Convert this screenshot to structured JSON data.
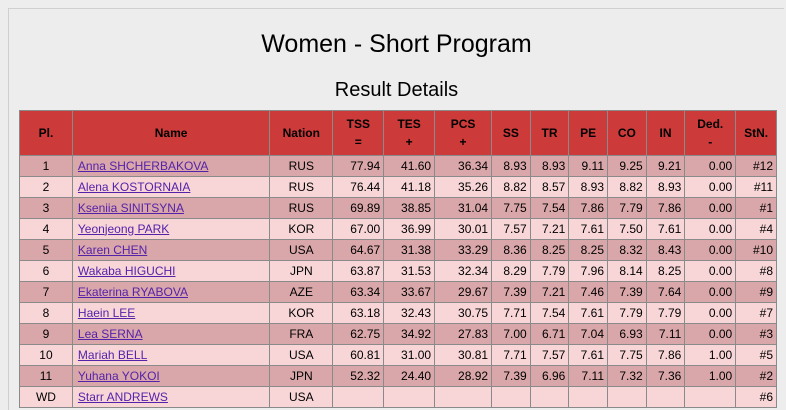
{
  "page": {
    "title": "Women - Short Program",
    "subtitle": "Result Details"
  },
  "table": {
    "headers": {
      "pl": "Pl.",
      "name": "Name",
      "nation": "Nation",
      "tss_top": "TSS",
      "tss_bottom": "=",
      "tes_top": "TES",
      "tes_bottom": "+",
      "pcs_top": "PCS",
      "pcs_bottom": "+",
      "ss": "SS",
      "tr": "TR",
      "pe": "PE",
      "co": "CO",
      "in": "IN",
      "ded_top": "Ded.",
      "ded_bottom": "-",
      "stn": "StN."
    },
    "rows": [
      {
        "pl": "1",
        "name": "Anna SHCHERBAKOVA",
        "nation": "RUS",
        "tss": "77.94",
        "tes": "41.60",
        "pcs": "36.34",
        "ss": "8.93",
        "tr": "8.93",
        "pe": "9.11",
        "co": "9.25",
        "in": "9.21",
        "ded": "0.00",
        "stn": "#12"
      },
      {
        "pl": "2",
        "name": "Alena KOSTORNAIA",
        "nation": "RUS",
        "tss": "76.44",
        "tes": "41.18",
        "pcs": "35.26",
        "ss": "8.82",
        "tr": "8.57",
        "pe": "8.93",
        "co": "8.82",
        "in": "8.93",
        "ded": "0.00",
        "stn": "#11"
      },
      {
        "pl": "3",
        "name": "Kseniia SINITSYNA",
        "nation": "RUS",
        "tss": "69.89",
        "tes": "38.85",
        "pcs": "31.04",
        "ss": "7.75",
        "tr": "7.54",
        "pe": "7.86",
        "co": "7.79",
        "in": "7.86",
        "ded": "0.00",
        "stn": "#1"
      },
      {
        "pl": "4",
        "name": "Yeonjeong PARK",
        "nation": "KOR",
        "tss": "67.00",
        "tes": "36.99",
        "pcs": "30.01",
        "ss": "7.57",
        "tr": "7.21",
        "pe": "7.61",
        "co": "7.50",
        "in": "7.61",
        "ded": "0.00",
        "stn": "#4"
      },
      {
        "pl": "5",
        "name": "Karen CHEN",
        "nation": "USA",
        "tss": "64.67",
        "tes": "31.38",
        "pcs": "33.29",
        "ss": "8.36",
        "tr": "8.25",
        "pe": "8.25",
        "co": "8.32",
        "in": "8.43",
        "ded": "0.00",
        "stn": "#10"
      },
      {
        "pl": "6",
        "name": "Wakaba HIGUCHI",
        "nation": "JPN",
        "tss": "63.87",
        "tes": "31.53",
        "pcs": "32.34",
        "ss": "8.29",
        "tr": "7.79",
        "pe": "7.96",
        "co": "8.14",
        "in": "8.25",
        "ded": "0.00",
        "stn": "#8"
      },
      {
        "pl": "7",
        "name": "Ekaterina RYABOVA",
        "nation": "AZE",
        "tss": "63.34",
        "tes": "33.67",
        "pcs": "29.67",
        "ss": "7.39",
        "tr": "7.21",
        "pe": "7.46",
        "co": "7.39",
        "in": "7.64",
        "ded": "0.00",
        "stn": "#9"
      },
      {
        "pl": "8",
        "name": "Haein LEE",
        "nation": "KOR",
        "tss": "63.18",
        "tes": "32.43",
        "pcs": "30.75",
        "ss": "7.71",
        "tr": "7.54",
        "pe": "7.61",
        "co": "7.79",
        "in": "7.79",
        "ded": "0.00",
        "stn": "#7"
      },
      {
        "pl": "9",
        "name": "Lea SERNA",
        "nation": "FRA",
        "tss": "62.75",
        "tes": "34.92",
        "pcs": "27.83",
        "ss": "7.00",
        "tr": "6.71",
        "pe": "7.04",
        "co": "6.93",
        "in": "7.11",
        "ded": "0.00",
        "stn": "#3"
      },
      {
        "pl": "10",
        "name": "Mariah BELL",
        "nation": "USA",
        "tss": "60.81",
        "tes": "31.00",
        "pcs": "30.81",
        "ss": "7.71",
        "tr": "7.57",
        "pe": "7.61",
        "co": "7.75",
        "in": "7.86",
        "ded": "1.00",
        "stn": "#5"
      },
      {
        "pl": "11",
        "name": "Yuhana YOKOI",
        "nation": "JPN",
        "tss": "52.32",
        "tes": "24.40",
        "pcs": "28.92",
        "ss": "7.39",
        "tr": "6.96",
        "pe": "7.11",
        "co": "7.32",
        "in": "7.36",
        "ded": "1.00",
        "stn": "#2"
      },
      {
        "pl": "WD",
        "name": "Starr ANDREWS",
        "nation": "USA",
        "tss": "",
        "tes": "",
        "pcs": "",
        "ss": "",
        "tr": "",
        "pe": "",
        "co": "",
        "in": "",
        "ded": "",
        "stn": "#6"
      }
    ]
  },
  "colors": {
    "header_bg": "#cc3a3a",
    "row_dark": "#d9a7a9",
    "row_light": "#f8d6d7",
    "link": "#5522aa"
  }
}
